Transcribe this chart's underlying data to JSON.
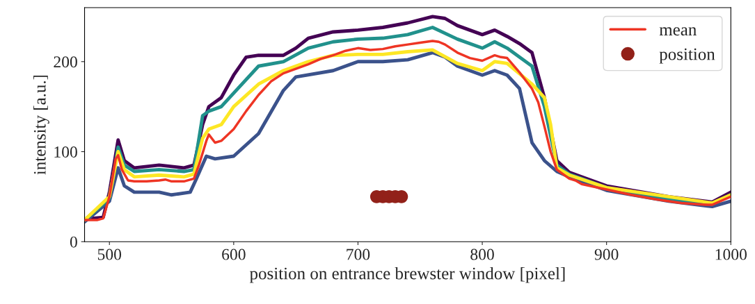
{
  "chart_data": {
    "type": "line",
    "xlabel": "position on entrance brewster window [pixel]",
    "ylabel": "intensity [a.u.]",
    "xlim": [
      480,
      1000
    ],
    "xticks": [
      500,
      600,
      700,
      800,
      900,
      1000
    ],
    "ylim": [
      0,
      260
    ],
    "yticks": [
      0,
      100,
      200
    ],
    "grid": false,
    "legend": "top right",
    "marker": "none",
    "line_style": "solid",
    "series": [
      {
        "color": "#440154",
        "x": [
          480,
          495,
          500,
          507,
          512,
          520,
          540,
          560,
          568,
          575,
          580,
          590,
          600,
          610,
          620,
          640,
          650,
          660,
          680,
          700,
          720,
          740,
          760,
          770,
          780,
          790,
          800,
          810,
          820,
          830,
          840,
          850,
          860,
          870,
          900,
          950,
          985,
          1000
        ],
        "values": [
          25,
          27,
          55,
          113,
          90,
          82,
          85,
          82,
          85,
          130,
          150,
          160,
          185,
          205,
          207,
          207,
          215,
          226,
          233,
          235,
          238,
          243,
          250,
          248,
          240,
          235,
          230,
          235,
          228,
          220,
          210,
          160,
          90,
          77,
          62,
          50,
          44,
          55
        ]
      },
      {
        "color": "#3b528b",
        "x": [
          480,
          500,
          507,
          512,
          520,
          540,
          550,
          565,
          570,
          578,
          585,
          600,
          620,
          640,
          650,
          680,
          700,
          720,
          740,
          760,
          770,
          780,
          800,
          810,
          820,
          830,
          840,
          850,
          860,
          870,
          900,
          950,
          985,
          1000
        ],
        "values": [
          22,
          45,
          82,
          62,
          55,
          55,
          52,
          55,
          70,
          95,
          92,
          95,
          120,
          168,
          183,
          190,
          200,
          200,
          202,
          210,
          205,
          195,
          185,
          190,
          185,
          170,
          110,
          90,
          78,
          72,
          57,
          45,
          39,
          45
        ]
      },
      {
        "color": "#21918c",
        "x": [
          480,
          500,
          507,
          512,
          520,
          540,
          560,
          568,
          575,
          580,
          590,
          600,
          620,
          640,
          660,
          680,
          700,
          720,
          740,
          760,
          780,
          800,
          810,
          820,
          840,
          850,
          860,
          870,
          900,
          950,
          985,
          1000
        ],
        "values": [
          24,
          48,
          105,
          85,
          78,
          80,
          78,
          80,
          140,
          145,
          150,
          165,
          195,
          200,
          215,
          222,
          225,
          226,
          230,
          238,
          225,
          215,
          222,
          215,
          195,
          150,
          85,
          75,
          60,
          48,
          42,
          52
        ]
      },
      {
        "color": "#fde725",
        "x": [
          480,
          500,
          507,
          512,
          520,
          540,
          560,
          568,
          575,
          580,
          590,
          600,
          620,
          640,
          660,
          680,
          700,
          720,
          740,
          760,
          780,
          800,
          810,
          820,
          840,
          850,
          855,
          860,
          870,
          900,
          950,
          985,
          1000
        ],
        "values": [
          24,
          50,
          100,
          80,
          72,
          74,
          72,
          75,
          115,
          125,
          130,
          150,
          175,
          190,
          200,
          207,
          208,
          208,
          211,
          213,
          198,
          190,
          200,
          198,
          175,
          160,
          130,
          82,
          74,
          60,
          50,
          43,
          52
        ]
      },
      {
        "name": "mean",
        "color": "#ee3524",
        "x": [
          480,
          490,
          495,
          500,
          505,
          507,
          510,
          515,
          520,
          530,
          540,
          545,
          550,
          560,
          568,
          572,
          578,
          580,
          585,
          590,
          600,
          610,
          620,
          630,
          640,
          650,
          660,
          670,
          680,
          690,
          700,
          710,
          720,
          730,
          740,
          750,
          760,
          765,
          770,
          780,
          790,
          800,
          810,
          815,
          820,
          830,
          840,
          845,
          850,
          855,
          860,
          870,
          875,
          880,
          900,
          920,
          940,
          960,
          980,
          985,
          1000
        ],
        "values": [
          24,
          24,
          26,
          50,
          92,
          96,
          80,
          68,
          67,
          67,
          68,
          69,
          67,
          67,
          70,
          85,
          112,
          119,
          110,
          112,
          125,
          145,
          163,
          178,
          187,
          192,
          197,
          203,
          207,
          212,
          215,
          213,
          214,
          217,
          219,
          221,
          223,
          222,
          219,
          210,
          204,
          201,
          207,
          205,
          204,
          188,
          170,
          155,
          128,
          100,
          80,
          70,
          68,
          64,
          58,
          52,
          47,
          43,
          41,
          41,
          50
        ]
      },
      {
        "name": "position",
        "type": "scatter",
        "marker": "circle",
        "color": "#922119",
        "x": [
          715,
          720,
          725,
          730,
          735
        ],
        "values": [
          50,
          50,
          50,
          50,
          50
        ]
      }
    ]
  }
}
